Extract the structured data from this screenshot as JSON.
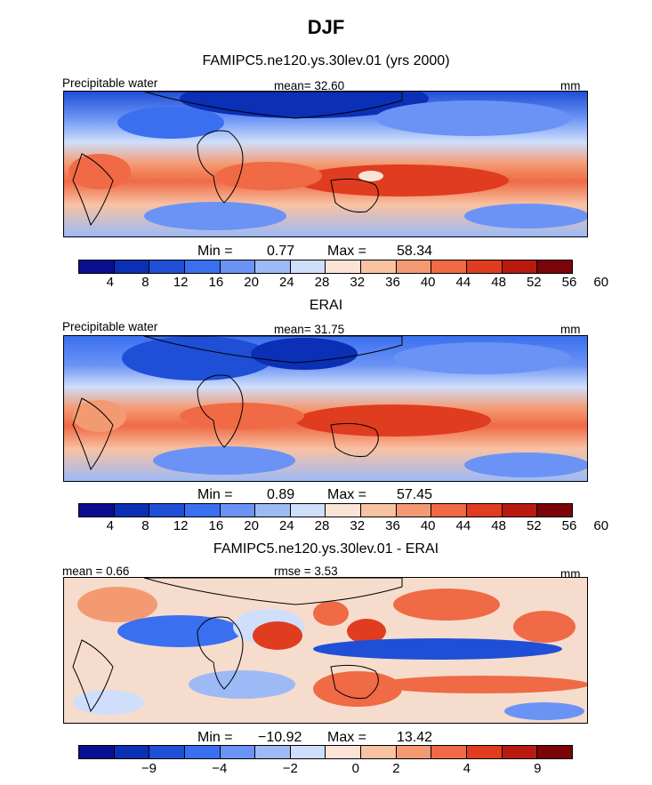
{
  "season": "DJF",
  "panels": [
    {
      "title": "FAMIPC5.ne120.ys.30lev.01 (yrs 2000)",
      "left_label": "Precipitable water",
      "mid_label": "mean=  32.60",
      "right_label": "mm",
      "min_text": "0.77",
      "max_text": "58.34"
    },
    {
      "title": "ERAI",
      "left_label": "Precipitable water",
      "mid_label": "mean=  31.75",
      "right_label": "mm",
      "min_text": "0.89",
      "max_text": "57.45"
    },
    {
      "title": "FAMIPC5.ne120.ys.30lev.01 - ERAI",
      "left_label": "mean =   0.66",
      "mid_label": "rmse =   3.53",
      "right_label": "mm",
      "min_text": "−10.92",
      "max_text": "13.42"
    }
  ],
  "labels": {
    "min": "Min =",
    "max": "Max ="
  },
  "colorbar_abs": {
    "colors": [
      "#0a0f8f",
      "#0b2fb5",
      "#1f4fd6",
      "#3a6ff0",
      "#6a93f5",
      "#9dbaf7",
      "#cfdefa",
      "#fbe4d6",
      "#f8c2a3",
      "#f49a73",
      "#ef6a45",
      "#e03c20",
      "#b81a10",
      "#7a0408"
    ],
    "tick_labels": [
      "4",
      "8",
      "12",
      "16",
      "20",
      "24",
      "28",
      "32",
      "36",
      "40",
      "44",
      "48",
      "52",
      "56",
      "60"
    ]
  },
  "colorbar_diff": {
    "colors": [
      "#0a0f8f",
      "#0b2fb5",
      "#1f4fd6",
      "#3a6ff0",
      "#6a93f5",
      "#9dbaf7",
      "#cfdefa",
      "#fbe4d6",
      "#f8c2a3",
      "#f49a73",
      "#ef6a45",
      "#e03c20",
      "#b81a10",
      "#7a0408"
    ],
    "tick_labels": [
      "−9",
      "−4",
      "−2",
      "0",
      "2",
      "4",
      "9"
    ]
  },
  "chart_data": [
    {
      "type": "heatmap",
      "title": "FAMIPC5.ne120.ys.30lev.01 (yrs 2000)",
      "variable": "Precipitable water",
      "units": "mm",
      "mean": 32.6,
      "min": 0.77,
      "max": 58.34,
      "levels": [
        4,
        8,
        12,
        16,
        20,
        24,
        28,
        32,
        36,
        40,
        44,
        48,
        52,
        56,
        60
      ]
    },
    {
      "type": "heatmap",
      "title": "ERAI",
      "variable": "Precipitable water",
      "units": "mm",
      "mean": 31.75,
      "min": 0.89,
      "max": 57.45,
      "levels": [
        4,
        8,
        12,
        16,
        20,
        24,
        28,
        32,
        36,
        40,
        44,
        48,
        52,
        56,
        60
      ]
    },
    {
      "type": "heatmap",
      "title": "FAMIPC5.ne120.ys.30lev.01 - ERAI",
      "units": "mm",
      "mean": 0.66,
      "rmse": 3.53,
      "min": -10.92,
      "max": 13.42,
      "levels": [
        -9,
        -4,
        -2,
        0,
        2,
        4,
        9
      ]
    }
  ]
}
